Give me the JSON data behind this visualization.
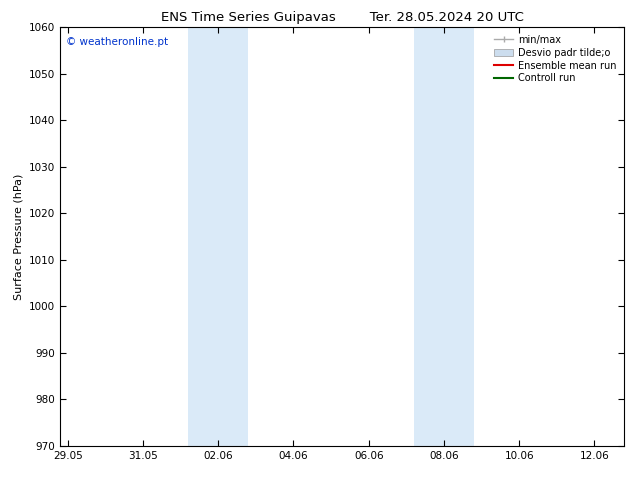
{
  "title_left": "ENS Time Series Guipavas",
  "title_right": "Ter. 28.05.2024 20 UTC",
  "ylabel": "Surface Pressure (hPa)",
  "ylim": [
    970,
    1060
  ],
  "yticks": [
    970,
    980,
    990,
    1000,
    1010,
    1020,
    1030,
    1040,
    1050,
    1060
  ],
  "xtick_labels": [
    "29.05",
    "31.05",
    "02.06",
    "04.06",
    "06.06",
    "08.06",
    "10.06",
    "12.06"
  ],
  "xtick_positions": [
    0,
    2,
    4,
    6,
    8,
    10,
    12,
    14
  ],
  "xlim": [
    -0.2,
    14.8
  ],
  "shaded_bands": [
    {
      "x_start": 3.2,
      "x_end": 4.8
    },
    {
      "x_start": 9.2,
      "x_end": 10.8
    }
  ],
  "band_color": "#daeaf8",
  "watermark": "© weatheronline.pt",
  "watermark_color": "#0033cc",
  "legend_entries": [
    {
      "label": "min/max",
      "color": "#aaaaaa",
      "type": "errorbar"
    },
    {
      "label": "Desvio padr tilde;o",
      "color": "#ccddee",
      "type": "fill"
    },
    {
      "label": "Ensemble mean run",
      "color": "#dd0000",
      "type": "line"
    },
    {
      "label": "Controll run",
      "color": "#006600",
      "type": "line"
    }
  ],
  "background_color": "#ffffff",
  "title_fontsize": 9.5,
  "ylabel_fontsize": 8,
  "tick_fontsize": 7.5,
  "legend_fontsize": 7,
  "watermark_fontsize": 7.5
}
